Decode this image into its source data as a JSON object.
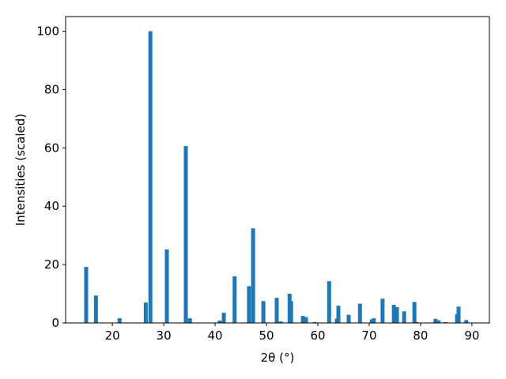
{
  "chart_data": {
    "type": "bar",
    "x_label": "2θ (°)",
    "y_label": "Intensities (scaled)",
    "x": [
      14.9,
      16.8,
      21.4,
      26.5,
      27.4,
      30.6,
      34.3,
      35.1,
      40.9,
      41.7,
      43.8,
      46.6,
      47.4,
      49.4,
      52.0,
      52.8,
      54.5,
      54.8,
      57.1,
      57.7,
      59.4,
      62.2,
      63.7,
      64.0,
      66.0,
      68.2,
      70.5,
      70.9,
      72.6,
      74.8,
      75.4,
      76.8,
      78.8,
      79.2,
      82.9,
      83.5,
      84.8,
      87.1,
      87.4,
      88.9
    ],
    "values": [
      19.2,
      9.4,
      1.6,
      7,
      100,
      25.2,
      60.6,
      1.6,
      0.8,
      3.5,
      16,
      12.6,
      32.4,
      7.5,
      8.6,
      0.5,
      10,
      7.5,
      2.4,
      2,
      0.3,
      14.3,
      1.5,
      5.9,
      2.8,
      6.6,
      1.2,
      1.6,
      8.3,
      6.2,
      5.4,
      4,
      7.2,
      0.3,
      1.4,
      0.9,
      0.3,
      3,
      5.6,
      1
    ],
    "color": "#1f77b4",
    "xlim": [
      10.9,
      93.4
    ],
    "xticks": [
      20,
      30,
      40,
      50,
      60,
      70,
      80,
      90
    ],
    "ylim": [
      0,
      105
    ],
    "yticks": [
      0,
      20,
      40,
      60,
      80,
      100
    ],
    "grid": false
  }
}
